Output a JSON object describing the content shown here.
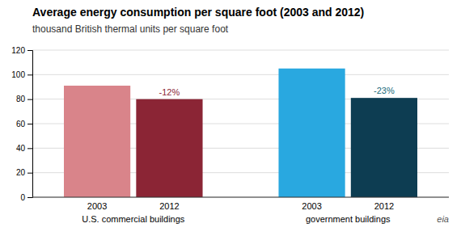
{
  "chart_data": {
    "type": "bar",
    "title": "Average energy consumption per square foot (2003 and 2012)",
    "subtitle": "thousand British thermal units per square foot",
    "categories": [
      "2003",
      "2012",
      "2003",
      "2012"
    ],
    "values": [
      91,
      80,
      105,
      81
    ],
    "colors": [
      "#d9848a",
      "#8b2535",
      "#29a8e0",
      "#0d3d52"
    ],
    "groups": [
      "U.S. commercial buildings",
      "government buildings"
    ],
    "annotations": [
      {
        "text": "-12%",
        "color": "#8b2535"
      },
      {
        "text": "-23%",
        "color": "#17697a"
      }
    ],
    "source": "eia",
    "ylim": [
      0,
      120
    ],
    "yticks": [
      0,
      20,
      40,
      60,
      80,
      100,
      120
    ],
    "grid": true
  }
}
